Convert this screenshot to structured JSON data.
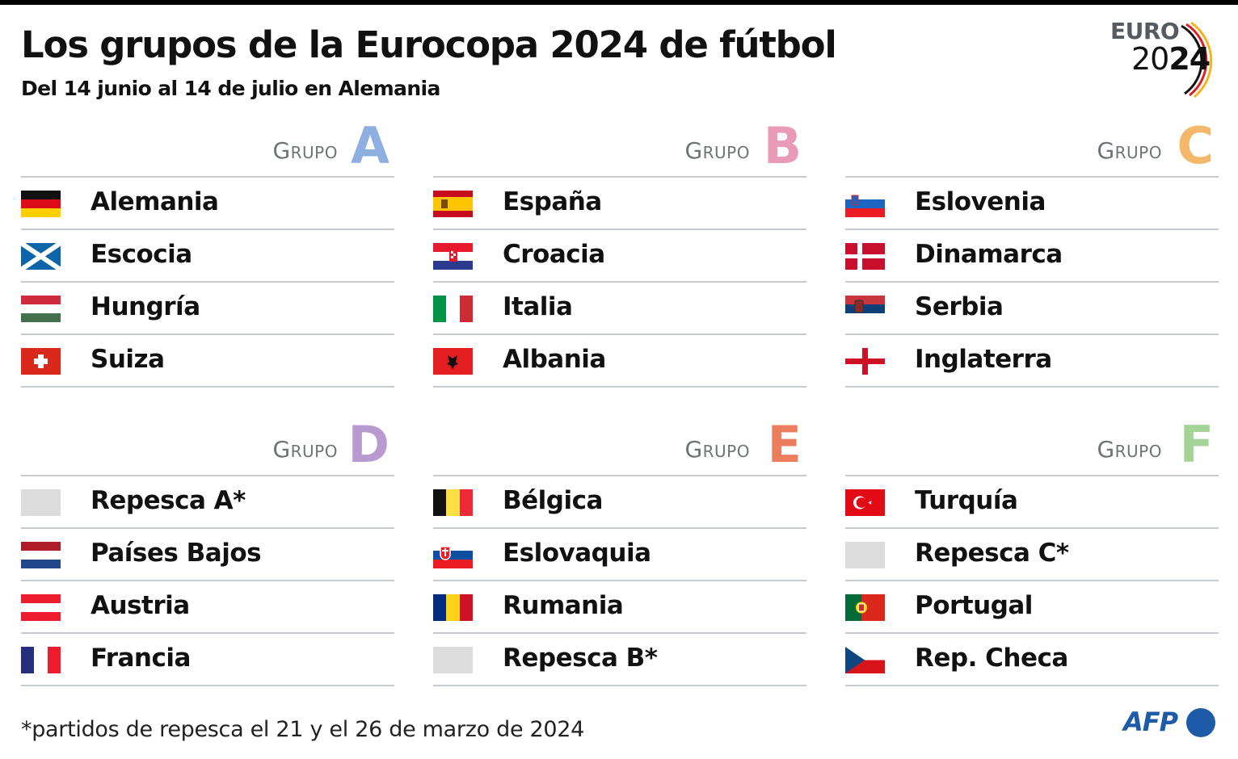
{
  "header": {
    "title": "Los grupos de la Eurocopa 2024 de fútbol",
    "subtitle": "Del 14 junio al 14 de julio en Alemania"
  },
  "logo": {
    "line1": "EURO",
    "year_light": "20",
    "year_bold": "24"
  },
  "group_label": "Grupo",
  "groups": [
    {
      "letter": "A",
      "color": "#8fafe0",
      "teams": [
        {
          "name": "Alemania",
          "flag": "germany-flag-icon"
        },
        {
          "name": "Escocia",
          "flag": "scotland-flag-icon"
        },
        {
          "name": "Hungría",
          "flag": "hungary-flag-icon"
        },
        {
          "name": "Suiza",
          "flag": "switzerland-flag-icon"
        }
      ]
    },
    {
      "letter": "B",
      "color": "#e89ab7",
      "teams": [
        {
          "name": "España",
          "flag": "spain-flag-icon"
        },
        {
          "name": "Croacia",
          "flag": "croatia-flag-icon"
        },
        {
          "name": "Italia",
          "flag": "italy-flag-icon"
        },
        {
          "name": "Albania",
          "flag": "albania-flag-icon"
        }
      ]
    },
    {
      "letter": "C",
      "color": "#f5b86a",
      "teams": [
        {
          "name": "Eslovenia",
          "flag": "slovenia-flag-icon"
        },
        {
          "name": "Dinamarca",
          "flag": "denmark-flag-icon"
        },
        {
          "name": "Serbia",
          "flag": "serbia-flag-icon"
        },
        {
          "name": "Inglaterra",
          "flag": "england-flag-icon"
        }
      ]
    },
    {
      "letter": "D",
      "color": "#b99ad0",
      "teams": [
        {
          "name": "Repesca A*",
          "flag": "placeholder-flag-icon"
        },
        {
          "name": "Países Bajos",
          "flag": "netherlands-flag-icon"
        },
        {
          "name": "Austria",
          "flag": "austria-flag-icon"
        },
        {
          "name": "Francia",
          "flag": "france-flag-icon"
        }
      ]
    },
    {
      "letter": "E",
      "color": "#ec7e5f",
      "teams": [
        {
          "name": "Bélgica",
          "flag": "belgium-flag-icon"
        },
        {
          "name": "Eslovaquia",
          "flag": "slovakia-flag-icon"
        },
        {
          "name": "Rumania",
          "flag": "romania-flag-icon"
        },
        {
          "name": "Repesca B*",
          "flag": "placeholder-flag-icon"
        }
      ]
    },
    {
      "letter": "F",
      "color": "#a6d497",
      "teams": [
        {
          "name": "Turquía",
          "flag": "turkey-flag-icon"
        },
        {
          "name": "Repesca C*",
          "flag": "placeholder-flag-icon"
        },
        {
          "name": "Portugal",
          "flag": "portugal-flag-icon"
        },
        {
          "name": "Rep. Checa",
          "flag": "czech-flag-icon"
        }
      ]
    }
  ],
  "footnote": "*partidos de repesca el 21 y el 26 de marzo de 2024",
  "credit": "AFP"
}
